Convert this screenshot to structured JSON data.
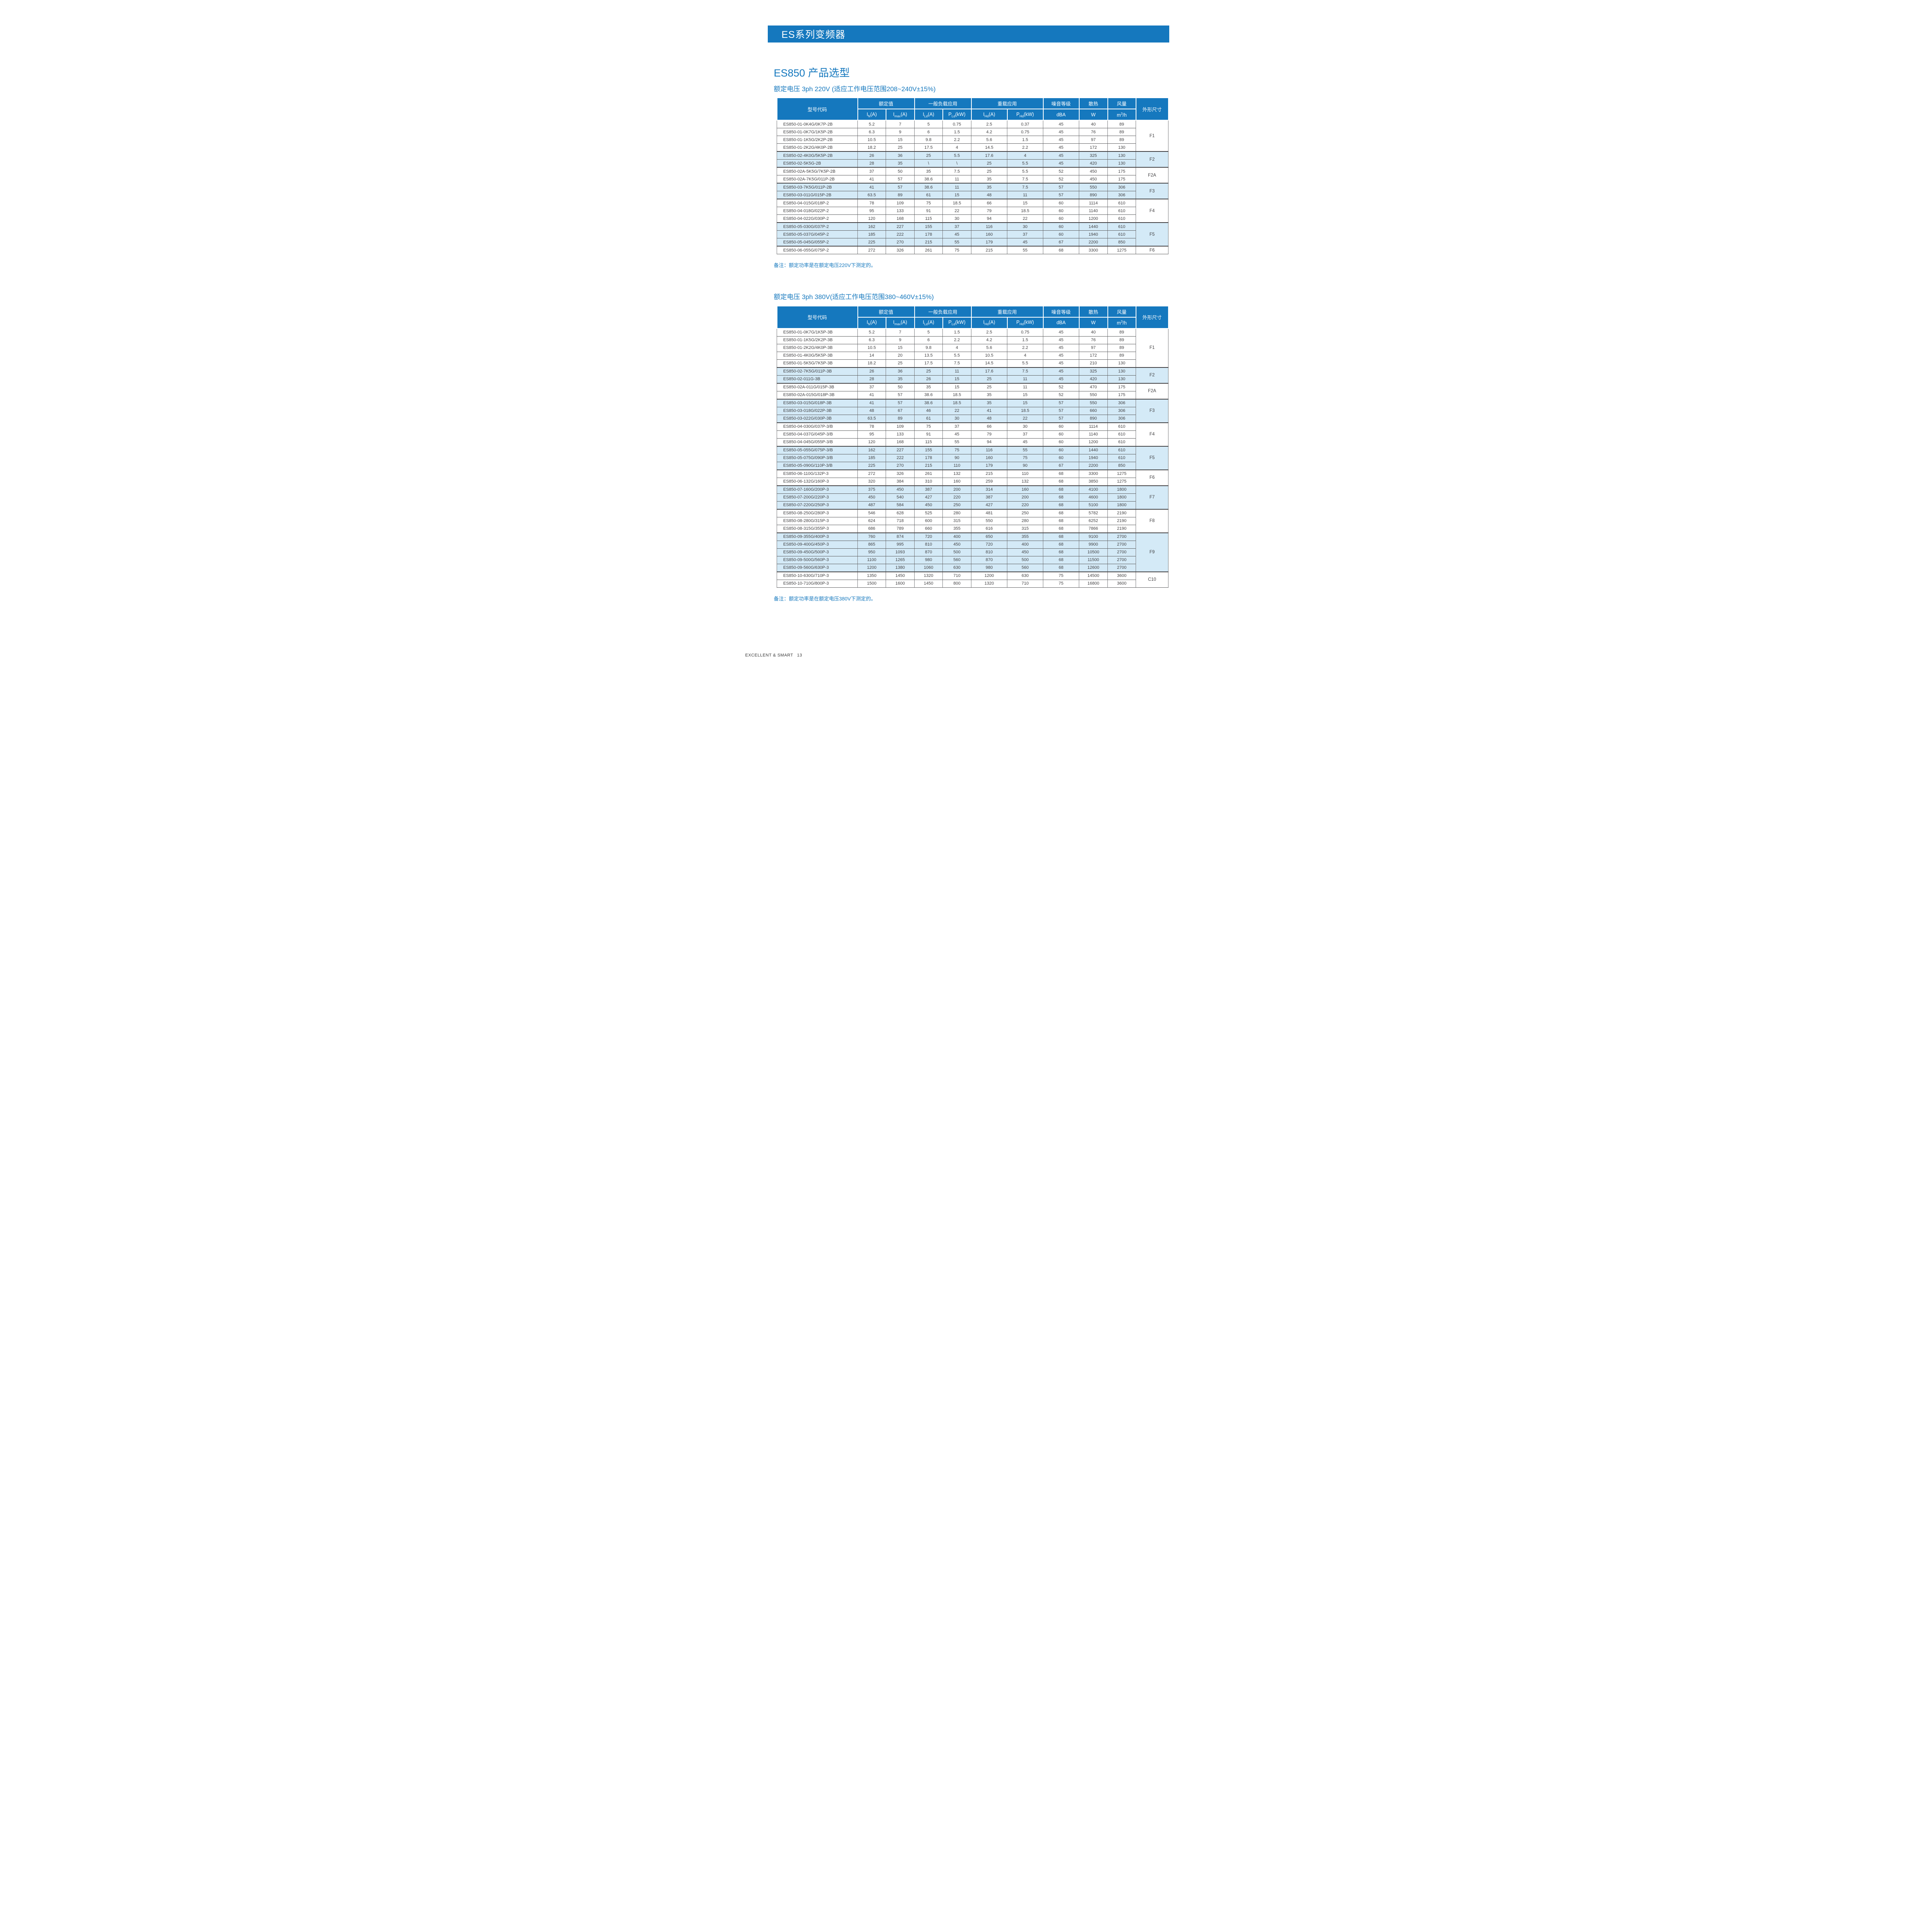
{
  "banner": {
    "title": "ES系列变频器"
  },
  "heading": "ES850 产品选型",
  "footer": {
    "brand": "EXCELLENT & SMART",
    "page": "13"
  },
  "columns": {
    "model": "型号代码",
    "frame": "外形尺寸",
    "groups": [
      {
        "label": "额定值",
        "span": 2
      },
      {
        "label": "一般负载应用",
        "span": 2
      },
      {
        "label": "重载应用",
        "span": 2
      },
      {
        "label": "噪音等级",
        "span": 1
      },
      {
        "label": "散热",
        "span": 1
      },
      {
        "label": "风量",
        "span": 1
      }
    ],
    "units": [
      "I_{N}(A)",
      "I_{max}(A)",
      "I_{Ld}(A)",
      "P_{Ld}(kW)",
      "I_{Hd}(A)",
      "P_{Hd}(kW)",
      "dBA",
      "W",
      "m^{3}/h"
    ]
  },
  "tables": [
    {
      "title": "额定电压 3ph 220V (适应工作电压范围208~240V±15%)",
      "note": "备注：额定功率是在额定电压220V下测定的。",
      "frames": [
        {
          "label": "F1",
          "span": 4,
          "shaded": false
        },
        {
          "label": "F2",
          "span": 2,
          "shaded": true
        },
        {
          "label": "F2A",
          "span": 2,
          "shaded": false
        },
        {
          "label": "F3",
          "span": 2,
          "shaded": true
        },
        {
          "label": "F4",
          "span": 3,
          "shaded": false
        },
        {
          "label": "F5",
          "span": 3,
          "shaded": true
        },
        {
          "label": "F6",
          "span": 1,
          "shaded": false
        }
      ],
      "rows": [
        [
          "ES850-01-0K4G/0K7P-2B",
          "5.2",
          "7",
          "5",
          "0.75",
          "2.5",
          "0.37",
          "45",
          "40",
          "89"
        ],
        [
          "ES850-01-0K7G/1K5P-2B",
          "6.3",
          "9",
          "6",
          "1.5",
          "4.2",
          "0.75",
          "45",
          "76",
          "89"
        ],
        [
          "ES850-01-1K5G/2K2P-2B",
          "10.5",
          "15",
          "9.8",
          "2.2",
          "5.6",
          "1.5",
          "45",
          "97",
          "89"
        ],
        [
          "ES850-01-2K2G/4K0P-2B",
          "18.2",
          "25",
          "17.5",
          "4",
          "14.5",
          "2.2",
          "45",
          "172",
          "130"
        ],
        [
          "ES850-02-4K0G/5K5P-2B",
          "26",
          "36",
          "25",
          "5.5",
          "17.6",
          "4",
          "45",
          "325",
          "130"
        ],
        [
          "ES850-02-5K5G-2B",
          "28",
          "35",
          "\\",
          "\\",
          "25",
          "5.5",
          "45",
          "420",
          "130"
        ],
        [
          "ES850-02A-5K5G/7K5P-2B",
          "37",
          "50",
          "35",
          "7.5",
          "25",
          "5.5",
          "52",
          "450",
          "175"
        ],
        [
          "ES850-02A-7K5G/011P-2B",
          "41",
          "57",
          "38.6",
          "11",
          "35",
          "7.5",
          "52",
          "450",
          "175"
        ],
        [
          "ES850-03-7K5G/011P-2B",
          "41",
          "57",
          "38.6",
          "11",
          "35",
          "7.5",
          "57",
          "550",
          "306"
        ],
        [
          "ES850-03-011G/015P-2B",
          "63.5",
          "89",
          "61",
          "15",
          "48",
          "11",
          "57",
          "890",
          "306"
        ],
        [
          "ES850-04-015G/018P-2",
          "78",
          "109",
          "75",
          "18.5",
          "66",
          "15",
          "60",
          "1114",
          "610"
        ],
        [
          "ES850-04-018G/022P-2",
          "95",
          "133",
          "91",
          "22",
          "79",
          "18.5",
          "60",
          "1140",
          "610"
        ],
        [
          "ES850-04-022G/030P-2",
          "120",
          "168",
          "115",
          "30",
          "94",
          "22",
          "60",
          "1200",
          "610"
        ],
        [
          "ES850-05-030G/037P-2",
          "162",
          "227",
          "155",
          "37",
          "116",
          "30",
          "60",
          "1440",
          "610"
        ],
        [
          "ES850-05-037G/045P-2",
          "185",
          "222",
          "178",
          "45",
          "160",
          "37",
          "60",
          "1940",
          "610"
        ],
        [
          "ES850-05-045G/055P-2",
          "225",
          "270",
          "215",
          "55",
          "179",
          "45",
          "67",
          "2200",
          "850"
        ],
        [
          "ES850-06-055G/075P-2",
          "272",
          "326",
          "261",
          "75",
          "215",
          "55",
          "68",
          "3300",
          "1275"
        ]
      ]
    },
    {
      "title": "额定电压 3ph 380V(适应工作电压范围380~460V±15%)",
      "note": "备注：额定功率是在额定电压380V下测定的。",
      "frames": [
        {
          "label": "F1",
          "span": 5,
          "shaded": false
        },
        {
          "label": "F2",
          "span": 2,
          "shaded": true
        },
        {
          "label": "F2A",
          "span": 2,
          "shaded": false
        },
        {
          "label": "F3",
          "span": 3,
          "shaded": true
        },
        {
          "label": "F4",
          "span": 3,
          "shaded": false
        },
        {
          "label": "F5",
          "span": 3,
          "shaded": true
        },
        {
          "label": "F6",
          "span": 2,
          "shaded": false
        },
        {
          "label": "F7",
          "span": 3,
          "shaded": true
        },
        {
          "label": "F8",
          "span": 3,
          "shaded": false
        },
        {
          "label": "F9",
          "span": 5,
          "shaded": true
        },
        {
          "label": "C10",
          "span": 2,
          "shaded": false
        }
      ],
      "rows": [
        [
          "ES850-01-0K7G/1K5P-3B",
          "5.2",
          "7",
          "5",
          "1.5",
          "2.5",
          "0.75",
          "45",
          "40",
          "89"
        ],
        [
          "ES850-01-1K5G/2K2P-3B",
          "6.3",
          "9",
          "6",
          "2.2",
          "4.2",
          "1.5",
          "45",
          "76",
          "89"
        ],
        [
          "ES850-01-2K2G/4K0P-3B",
          "10.5",
          "15",
          "9.8",
          "4",
          "5.6",
          "2.2",
          "45",
          "97",
          "89"
        ],
        [
          "ES850-01-4K0G/5K5P-3B",
          "14",
          "20",
          "13.5",
          "5.5",
          "10.5",
          "4",
          "45",
          "172",
          "89"
        ],
        [
          "ES850-01-5K5G/7K5P-3B",
          "18.2",
          "25",
          "17.5",
          "7.5",
          "14.5",
          "5.5",
          "45",
          "210",
          "130"
        ],
        [
          "ES850-02-7K5G/011P-3B",
          "26",
          "36",
          "25",
          "11",
          "17.6",
          "7.5",
          "45",
          "325",
          "130"
        ],
        [
          "ES850-02-011G-3B",
          "28",
          "35",
          "26",
          "15",
          "25",
          "11",
          "45",
          "420",
          "130"
        ],
        [
          "ES850-02A-011G/015P-3B",
          "37",
          "50",
          "35",
          "15",
          "25",
          "11",
          "52",
          "470",
          "175"
        ],
        [
          "ES850-02A-015G/018P-3B",
          "41",
          "57",
          "38.6",
          "18.5",
          "35",
          "15",
          "52",
          "550",
          "175"
        ],
        [
          "ES850-03-015G/018P-3B",
          "41",
          "57",
          "38.6",
          "18.5",
          "35",
          "15",
          "57",
          "550",
          "306"
        ],
        [
          "ES850-03-018G/022P-3B",
          "48",
          "67",
          "46",
          "22",
          "41",
          "18.5",
          "57",
          "660",
          "306"
        ],
        [
          "ES850-03-022G/030P-3B",
          "63.5",
          "89",
          "61",
          "30",
          "48",
          "22",
          "57",
          "890",
          "306"
        ],
        [
          "ES850-04-030G/037P-3/B",
          "78",
          "109",
          "75",
          "37",
          "66",
          "30",
          "60",
          "1114",
          "610"
        ],
        [
          "ES850-04-037G/045P-3/B",
          "95",
          "133",
          "91",
          "45",
          "79",
          "37",
          "60",
          "1140",
          "610"
        ],
        [
          "ES850-04-045G/055P-3/B",
          "120",
          "168",
          "115",
          "55",
          "94",
          "45",
          "60",
          "1200",
          "610"
        ],
        [
          "ES850-05-055G/075P-3/B",
          "162",
          "227",
          "155",
          "75",
          "116",
          "55",
          "60",
          "1440",
          "610"
        ],
        [
          "ES850-05-075G/090P-3/B",
          "185",
          "222",
          "178",
          "90",
          "160",
          "75",
          "60",
          "1940",
          "610"
        ],
        [
          "ES850-05-090G/110P-3/B",
          "225",
          "270",
          "215",
          "110",
          "179",
          "90",
          "67",
          "2200",
          "850"
        ],
        [
          "ES850-06-110G/132P-3",
          "272",
          "326",
          "261",
          "132",
          "215",
          "110",
          "68",
          "3300",
          "1275"
        ],
        [
          "ES850-06-132G/160P-3",
          "320",
          "384",
          "310",
          "160",
          "259",
          "132",
          "68",
          "3850",
          "1275"
        ],
        [
          "ES850-07-160G/200P-3",
          "375",
          "450",
          "387",
          "200",
          "314",
          "160",
          "68",
          "4100",
          "1800"
        ],
        [
          "ES850-07-200G/220P-3",
          "450",
          "540",
          "427",
          "220",
          "387",
          "200",
          "68",
          "4600",
          "1800"
        ],
        [
          "ES850-07-220G/250P-3",
          "487",
          "584",
          "450",
          "250",
          "427",
          "220",
          "68",
          "5100",
          "1800"
        ],
        [
          "ES850-08-250G/280P-3",
          "546",
          "628",
          "525",
          "280",
          "481",
          "250",
          "68",
          "5782",
          "2190"
        ],
        [
          "ES850-08-280G/315P-3",
          "624",
          "718",
          "600",
          "315",
          "550",
          "280",
          "68",
          "6252",
          "2190"
        ],
        [
          "ES850-08-315G/355P-3",
          "686",
          "789",
          "660",
          "355",
          "616",
          "315",
          "68",
          "7866",
          "2190"
        ],
        [
          "ES850-09-355G/400P-3",
          "760",
          "874",
          "720",
          "400",
          "650",
          "355",
          "68",
          "9100",
          "2700"
        ],
        [
          "ES850-09-400G/450P-3",
          "865",
          "995",
          "810",
          "450",
          "720",
          "400",
          "68",
          "9900",
          "2700"
        ],
        [
          "ES850-09-450G/500P-3",
          "950",
          "1093",
          "870",
          "500",
          "810",
          "450",
          "68",
          "10500",
          "2700"
        ],
        [
          "ES850-09-500G/560P-3",
          "1100",
          "1265",
          "980",
          "560",
          "870",
          "500",
          "68",
          "11500",
          "2700"
        ],
        [
          "ES850-09-560G/630P-3",
          "1200",
          "1380",
          "1060",
          "630",
          "980",
          "560",
          "68",
          "12600",
          "2700"
        ],
        [
          "ES850-10-630G/710P-3",
          "1350",
          "1450",
          "1320",
          "710",
          "1200",
          "630",
          "75",
          "14500",
          "3600"
        ],
        [
          "ES850-10-710G/800P-3",
          "1500",
          "1600",
          "1450",
          "800",
          "1320",
          "710",
          "75",
          "16800",
          "3600"
        ]
      ]
    }
  ],
  "colors": {
    "accent_blue": "#1578be",
    "shaded_row": "#d4eaf7",
    "grid_line": "#58595b",
    "group_line": "#414042"
  }
}
